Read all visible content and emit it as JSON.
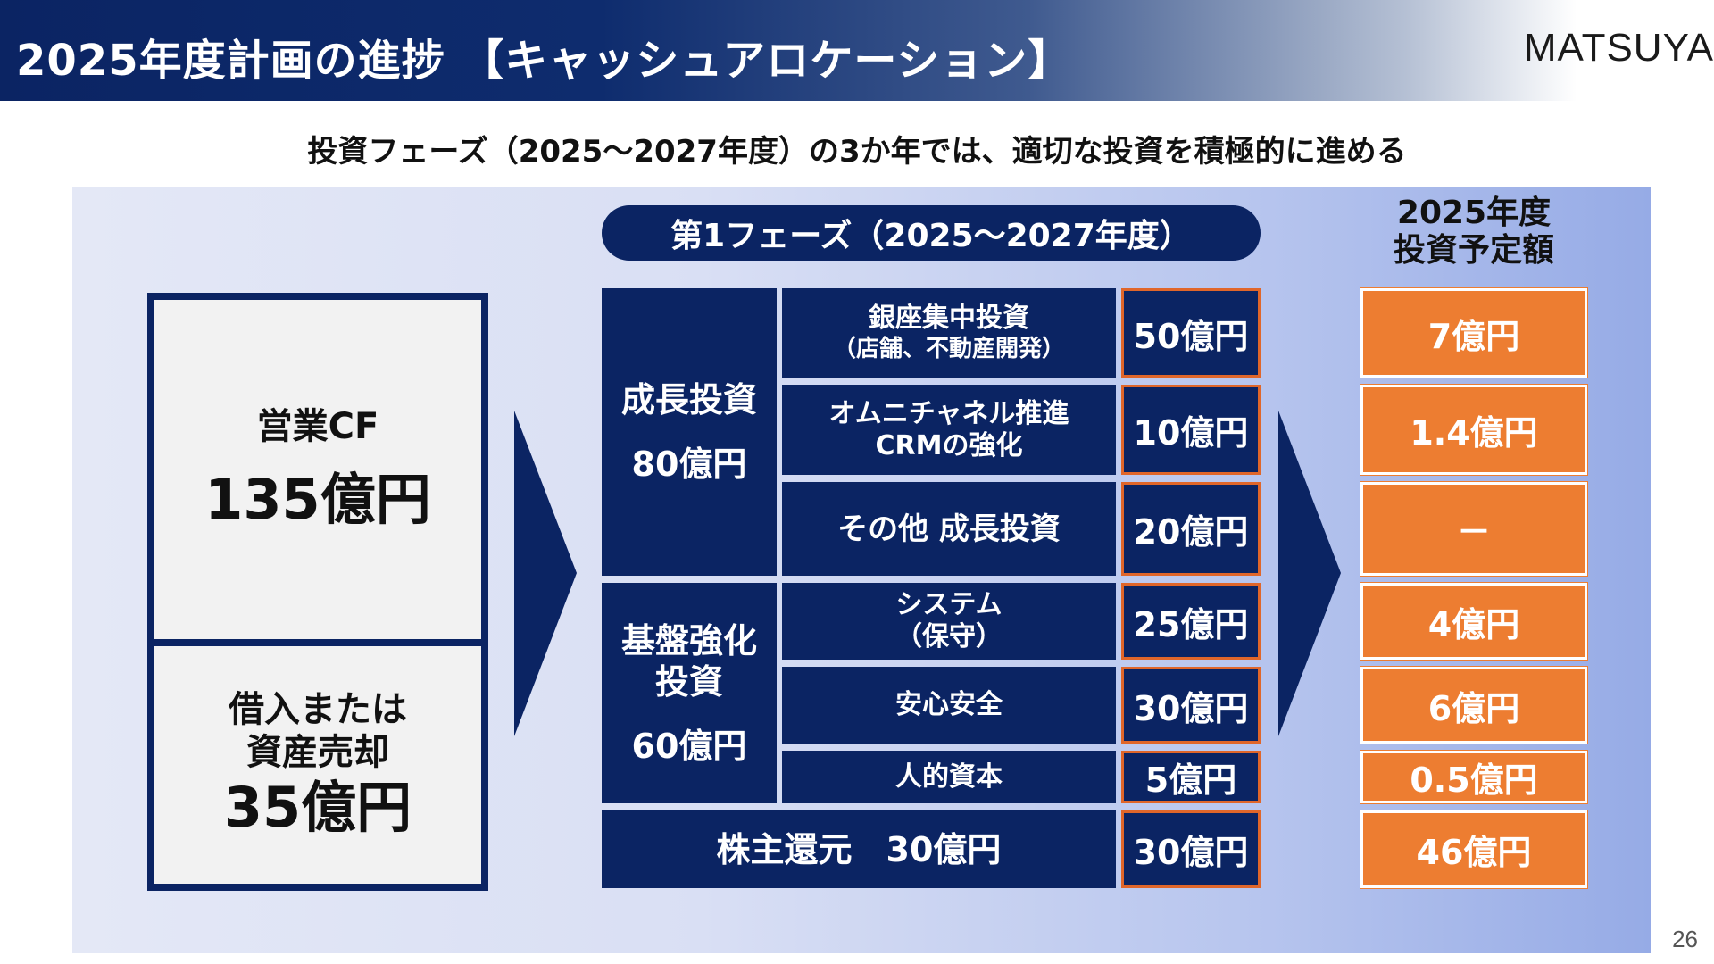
{
  "header": {
    "title": "2025年度計画の進捗 【キャッシュアロケーション】",
    "logo": "MATSUYA"
  },
  "subtitle": "投資フェーズ（2025～2027年度）の3か年では、適切な投資を積極的に進める",
  "sources": {
    "operating_cf": {
      "label": "営業CF",
      "amount": "135億円"
    },
    "borrowing": {
      "label_line1": "借入または",
      "label_line2": "資産売却",
      "amount": "35億円"
    }
  },
  "phase": {
    "label": "第1フェーズ（2025～2027年度）"
  },
  "categories": {
    "growth": {
      "label": "成長投資",
      "amount": "80億円"
    },
    "foundation": {
      "label_line1": "基盤強化",
      "label_line2": "投資",
      "amount": "60億円"
    },
    "shareholder": {
      "label": "株主還元　30億円"
    }
  },
  "items": [
    {
      "line1": "銀座集中投資",
      "line2": "（店舗、不動産開発）",
      "amount": "50億円",
      "plan2025": "7億円"
    },
    {
      "line1": "オムニチャネル推進",
      "line2": "CRMの強化",
      "amount": "10億円",
      "plan2025": "1.4億円"
    },
    {
      "line1": "その他 成長投資",
      "line2": "",
      "amount": "20億円",
      "plan2025": "－"
    },
    {
      "line1": "システム",
      "line2": "（保守）",
      "amount": "25億円",
      "plan2025": "4億円"
    },
    {
      "line1": "安心安全",
      "line2": "",
      "amount": "30億円",
      "plan2025": "6億円"
    },
    {
      "line1": "人的資本",
      "line2": "",
      "amount": "5億円",
      "plan2025": "0.5億円"
    },
    {
      "line1": "",
      "line2": "",
      "amount": "30億円",
      "plan2025": "46億円"
    }
  ],
  "plan_header": {
    "line1": "2025年度",
    "line2": "投資予定額"
  },
  "colors": {
    "navy": "#0b2463",
    "orange": "#ed7d31",
    "panel": "#d9dff4"
  },
  "page_number": "26"
}
